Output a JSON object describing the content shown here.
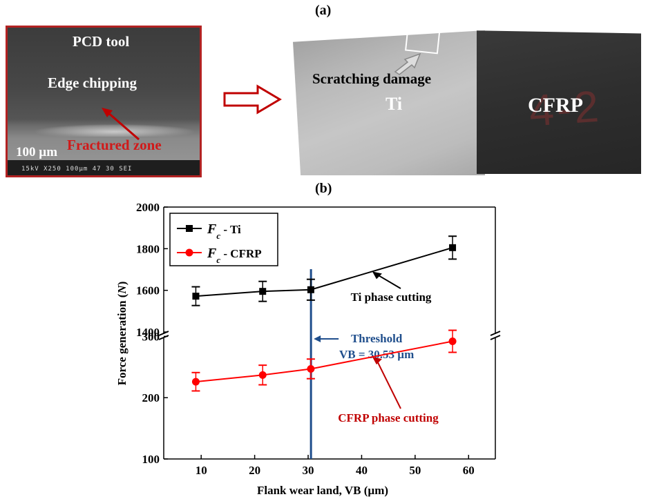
{
  "panel_a": {
    "label": "(a)",
    "sem": {
      "title": "PCD tool",
      "chipping": "Edge chipping",
      "fractured": "Fractured zone",
      "scale": "100 µm",
      "meta": "15kV    X250  100µm        47 30 SEI"
    },
    "photo": {
      "scratching": "Scratching damage",
      "ti": "Ti",
      "cfrp": "CFRP",
      "cfrp_mark": "4-2"
    }
  },
  "panel_b": {
    "label": "(b)"
  },
  "colors": {
    "ti_series": "#000000",
    "cfrp_series": "#ff0000",
    "threshold": "#1f4e8c",
    "ti_annotation": "#000000",
    "cfrp_annotation": "#c00000",
    "sem_border": "#b22222"
  },
  "chart_data": {
    "type": "line",
    "xlabel": "Flank wear land, VB (µm)",
    "ylabel": "Force generation (N)",
    "xlim": [
      3,
      65
    ],
    "xticks": [
      10,
      20,
      30,
      40,
      50,
      60
    ],
    "y_break": true,
    "upper_ylim": [
      1400,
      2000
    ],
    "upper_yticks": [
      1400,
      1600,
      1800,
      2000
    ],
    "lower_ylim": [
      100,
      350
    ],
    "lower_yticks": [
      100,
      200,
      300
    ],
    "legend_position": "top-left",
    "series": [
      {
        "name": "Fc - Ti",
        "legend_symbol": "F",
        "legend_sub": "c",
        "legend_rest": " - Ti",
        "marker": "square",
        "x": [
          9,
          21.5,
          30.5,
          57
        ],
        "y": [
          1572,
          1595,
          1603,
          1805
        ],
        "err": [
          45,
          48,
          50,
          55
        ]
      },
      {
        "name": "Fc - CFRP",
        "legend_symbol": "F",
        "legend_sub": "c",
        "legend_rest": " - CFRP",
        "marker": "circle",
        "x": [
          9,
          21.5,
          30.5,
          57
        ],
        "y": [
          226,
          237,
          247,
          292
        ],
        "err": [
          15,
          16,
          16,
          18
        ]
      }
    ],
    "threshold": {
      "x": 30.53,
      "label_line1": "Threshold",
      "label_line2": "VB = 30.53 µm"
    },
    "annotations": [
      {
        "text": "Ti phase cutting",
        "series": 0,
        "target_x": 42
      },
      {
        "text": "CFRP phase cutting",
        "series": 1,
        "target_x": 42
      }
    ]
  }
}
